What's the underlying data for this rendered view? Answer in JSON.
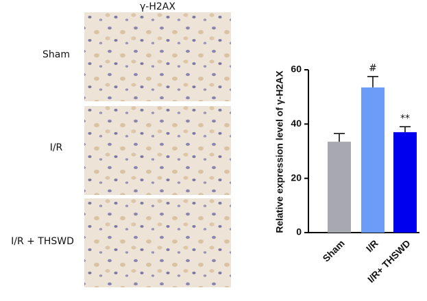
{
  "panels": {
    "title": "γ-H2AX",
    "rows": [
      "Sham",
      "I/R",
      "I/R + THSWD"
    ]
  },
  "chart_data": {
    "type": "bar",
    "ylabel": "Relative expression level of γ-H2AX",
    "categories": [
      "Sham",
      "I/R",
      "I/R+ THSWD"
    ],
    "values": [
      33.5,
      53.5,
      37
    ],
    "errors": [
      3,
      4,
      2
    ],
    "annotations": [
      null,
      "#",
      "**"
    ],
    "colors": [
      "#a8a8b0",
      "#6b9cf7",
      "#0000ee"
    ],
    "ylim": [
      0,
      60
    ],
    "yticks": [
      0,
      20,
      40,
      60
    ],
    "grid": false
  }
}
